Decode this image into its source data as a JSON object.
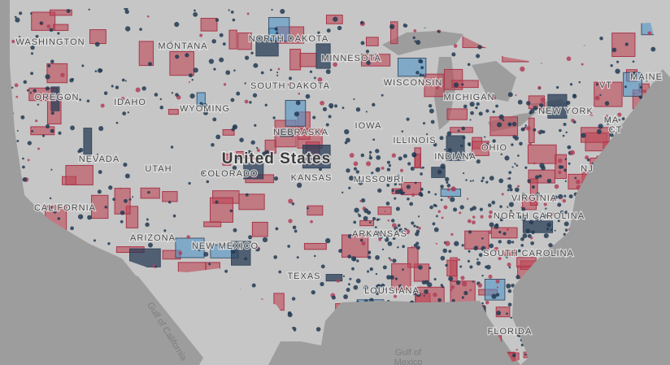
{
  "map": {
    "country_label": "United States",
    "state_labels": [
      "WASHINGTON",
      "MONTANA",
      "NORTH DAKOTA",
      "MINNESOTA",
      "SOUTH DAKOTA",
      "WISCONSIN",
      "MICHIGAN",
      "OREGON",
      "IDAHO",
      "WYOMING",
      "IOWA",
      "NEBRASKA",
      "ILLINOIS",
      "NEVADA",
      "UTAH",
      "COLORADO",
      "KANSAS",
      "MISSOURI",
      "INDIANA",
      "OHIO",
      "NEW YORK",
      "VT",
      "MAINE",
      "MA",
      "CT",
      "NJ",
      "CALIFORNIA",
      "ARIZONA",
      "NEW MEXICO",
      "ARKANSAS",
      "TEXAS",
      "LOUISIANA",
      "VIRGINIA",
      "NORTH CAROLINA",
      "SOUTH CAROLINA",
      "FLORIDA"
    ],
    "water_labels": [
      "Gulf of California",
      "Gulf of",
      "Mexico"
    ]
  }
}
